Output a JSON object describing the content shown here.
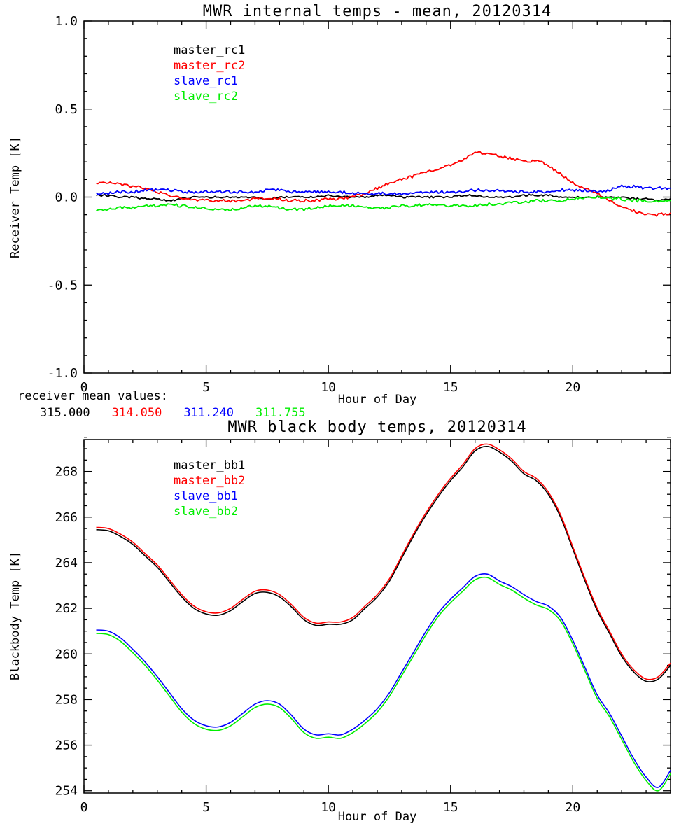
{
  "colors": {
    "black": "#000000",
    "red": "#ff0000",
    "blue": "#0000ff",
    "green": "#00ee00"
  },
  "annotations": {
    "receiver_means": {
      "label": "receiver mean values:",
      "values": [
        "315.000",
        "314.050",
        "311.240",
        "311.755"
      ],
      "colors": [
        "black",
        "red",
        "blue",
        "green"
      ]
    }
  },
  "chart_data": [
    {
      "type": "line",
      "title": "MWR internal temps - mean, 20120314",
      "xlabel": "Hour of Day",
      "ylabel": "Receiver Temp [K]",
      "xlim": [
        0,
        24
      ],
      "ylim": [
        -1.0,
        1.0
      ],
      "grid": false,
      "legend_position": "upper-left-inside",
      "line_width": 1.8,
      "xticks": {
        "values": [
          0,
          5,
          10,
          15,
          20
        ],
        "labels": [
          "0",
          "5",
          "10",
          "15",
          "20"
        ],
        "minor": 1
      },
      "yticks": {
        "values": [
          -1.0,
          -0.5,
          0.0,
          0.5,
          1.0
        ],
        "labels": [
          "-1.0",
          "-0.5",
          "0.0",
          "0.5",
          "1.0"
        ],
        "minor": 0.1
      },
      "x": [
        0.5,
        1,
        1.5,
        2,
        2.5,
        3,
        3.5,
        4,
        4.5,
        5,
        5.5,
        6,
        6.5,
        7,
        7.5,
        8,
        8.5,
        9,
        9.5,
        10,
        10.5,
        11,
        11.5,
        12,
        12.5,
        13,
        13.5,
        14,
        14.5,
        15,
        15.5,
        16,
        16.5,
        17,
        17.5,
        18,
        18.5,
        19,
        19.5,
        20,
        20.5,
        21,
        21.5,
        22,
        22.5,
        23,
        23.5,
        24
      ],
      "series": [
        {
          "name": "master_rc1",
          "color": "black",
          "noise": 0.005,
          "values": [
            0.01,
            0.01,
            0.0,
            0.0,
            -0.01,
            -0.01,
            -0.02,
            -0.01,
            0.0,
            0.0,
            0.0,
            0.0,
            0.0,
            0.0,
            -0.01,
            0.0,
            0.0,
            0.0,
            0.0,
            0.01,
            0.0,
            0.0,
            0.0,
            0.01,
            0.01,
            0.0,
            0.0,
            0.0,
            0.0,
            0.0,
            0.01,
            0.01,
            0.0,
            0.0,
            0.0,
            0.01,
            0.01,
            0.01,
            0.0,
            0.0,
            0.0,
            0.0,
            0.0,
            0.0,
            -0.01,
            -0.01,
            -0.02,
            -0.01
          ]
        },
        {
          "name": "master_rc2",
          "color": "red",
          "noise": 0.008,
          "values": [
            0.08,
            0.08,
            0.07,
            0.06,
            0.05,
            0.03,
            0.01,
            -0.01,
            -0.02,
            -0.02,
            -0.02,
            -0.02,
            -0.02,
            -0.01,
            -0.01,
            -0.01,
            -0.02,
            -0.02,
            -0.02,
            -0.01,
            -0.01,
            0.0,
            0.02,
            0.05,
            0.08,
            0.1,
            0.12,
            0.14,
            0.16,
            0.18,
            0.21,
            0.25,
            0.25,
            0.23,
            0.22,
            0.2,
            0.21,
            0.18,
            0.13,
            0.08,
            0.05,
            0.02,
            -0.02,
            -0.05,
            -0.08,
            -0.1,
            -0.1,
            -0.09
          ]
        },
        {
          "name": "slave_rc1",
          "color": "blue",
          "noise": 0.008,
          "values": [
            0.02,
            0.02,
            0.03,
            0.03,
            0.04,
            0.04,
            0.04,
            0.03,
            0.03,
            0.03,
            0.03,
            0.03,
            0.03,
            0.03,
            0.04,
            0.04,
            0.03,
            0.03,
            0.03,
            0.03,
            0.03,
            0.02,
            0.02,
            0.02,
            0.02,
            0.02,
            0.02,
            0.03,
            0.03,
            0.03,
            0.03,
            0.04,
            0.04,
            0.04,
            0.03,
            0.03,
            0.03,
            0.03,
            0.04,
            0.04,
            0.04,
            0.03,
            0.04,
            0.06,
            0.06,
            0.05,
            0.05,
            0.05
          ]
        },
        {
          "name": "slave_rc2",
          "color": "green",
          "noise": 0.008,
          "values": [
            -0.07,
            -0.07,
            -0.06,
            -0.06,
            -0.05,
            -0.05,
            -0.04,
            -0.05,
            -0.06,
            -0.06,
            -0.07,
            -0.07,
            -0.06,
            -0.05,
            -0.05,
            -0.06,
            -0.07,
            -0.07,
            -0.06,
            -0.05,
            -0.05,
            -0.05,
            -0.06,
            -0.06,
            -0.06,
            -0.05,
            -0.05,
            -0.04,
            -0.04,
            -0.05,
            -0.05,
            -0.05,
            -0.04,
            -0.04,
            -0.03,
            -0.03,
            -0.02,
            -0.02,
            -0.02,
            -0.01,
            0.0,
            0.0,
            -0.01,
            -0.01,
            -0.02,
            -0.02,
            -0.02,
            -0.02
          ]
        }
      ]
    },
    {
      "type": "line",
      "title": "MWR black body temps, 20120314",
      "xlabel": "Hour of Day",
      "ylabel": "Blackbody Temp [K]",
      "xlim": [
        0,
        24
      ],
      "ylim": [
        253.9,
        269.4
      ],
      "grid": false,
      "legend_position": "upper-left-inside",
      "line_width": 1.6,
      "xticks": {
        "values": [
          0,
          5,
          10,
          15,
          20
        ],
        "labels": [
          "0",
          "5",
          "10",
          "15",
          "20"
        ],
        "minor": 1
      },
      "yticks": {
        "values": [
          254,
          256,
          258,
          260,
          262,
          264,
          266,
          268
        ],
        "labels": [
          "254",
          "256",
          "258",
          "260",
          "262",
          "264",
          "266",
          "268"
        ],
        "minor": 0.5
      },
      "x": [
        0.5,
        1,
        1.5,
        2,
        2.5,
        3,
        3.5,
        4,
        4.5,
        5,
        5.5,
        6,
        6.5,
        7,
        7.5,
        8,
        8.5,
        9,
        9.5,
        10,
        10.5,
        11,
        11.5,
        12,
        12.5,
        13,
        13.5,
        14,
        14.5,
        15,
        15.5,
        16,
        16.5,
        17,
        17.5,
        18,
        18.5,
        19,
        19.5,
        20,
        20.5,
        21,
        21.5,
        22,
        22.5,
        23,
        23.5,
        24
      ],
      "series": [
        {
          "name": "master_bb1",
          "color": "black",
          "noise": 0,
          "values": [
            265.45,
            265.4,
            265.15,
            264.8,
            264.3,
            263.8,
            263.15,
            262.5,
            262.0,
            261.75,
            261.7,
            261.9,
            262.3,
            262.65,
            262.7,
            262.5,
            262.05,
            261.5,
            261.25,
            261.3,
            261.3,
            261.5,
            262.0,
            262.5,
            263.2,
            264.2,
            265.2,
            266.1,
            266.9,
            267.6,
            268.2,
            268.9,
            269.1,
            268.85,
            268.45,
            267.9,
            267.6,
            267.0,
            266.0,
            264.6,
            263.2,
            261.9,
            260.9,
            259.9,
            259.2,
            258.8,
            258.9,
            259.5
          ]
        },
        {
          "name": "master_bb2",
          "color": "red",
          "noise": 0,
          "values": [
            265.55,
            265.5,
            265.25,
            264.9,
            264.4,
            263.9,
            263.25,
            262.6,
            262.1,
            261.85,
            261.8,
            262.0,
            262.4,
            262.75,
            262.8,
            262.6,
            262.15,
            261.6,
            261.35,
            261.4,
            261.4,
            261.6,
            262.1,
            262.6,
            263.3,
            264.3,
            265.3,
            266.2,
            267.0,
            267.7,
            268.3,
            269.0,
            269.2,
            268.95,
            268.55,
            268.0,
            267.7,
            267.1,
            266.1,
            264.7,
            263.3,
            262.0,
            261.0,
            260.0,
            259.3,
            258.9,
            259.0,
            259.6
          ]
        },
        {
          "name": "slave_bb1",
          "color": "blue",
          "noise": 0,
          "values": [
            261.05,
            261.0,
            260.7,
            260.2,
            259.65,
            259.0,
            258.3,
            257.6,
            257.1,
            256.85,
            256.8,
            257.0,
            257.4,
            257.8,
            257.95,
            257.8,
            257.3,
            256.7,
            256.45,
            256.5,
            256.45,
            256.7,
            257.1,
            257.6,
            258.3,
            259.2,
            260.1,
            261.0,
            261.8,
            262.4,
            262.9,
            263.4,
            263.5,
            263.2,
            262.95,
            262.6,
            262.3,
            262.1,
            261.6,
            260.6,
            259.4,
            258.2,
            257.4,
            256.4,
            255.4,
            254.6,
            254.15,
            254.9
          ]
        },
        {
          "name": "slave_bb2",
          "color": "green",
          "noise": 0,
          "values": [
            260.9,
            260.85,
            260.55,
            260.05,
            259.5,
            258.85,
            258.15,
            257.45,
            256.95,
            256.7,
            256.65,
            256.85,
            257.25,
            257.65,
            257.8,
            257.65,
            257.15,
            256.55,
            256.3,
            256.35,
            256.3,
            256.55,
            256.95,
            257.45,
            258.15,
            259.05,
            259.95,
            260.85,
            261.65,
            262.25,
            262.75,
            263.25,
            263.35,
            263.05,
            262.8,
            262.45,
            262.15,
            261.95,
            261.45,
            260.45,
            259.25,
            258.05,
            257.25,
            256.25,
            255.25,
            254.45,
            254.0,
            254.75
          ]
        }
      ]
    }
  ]
}
